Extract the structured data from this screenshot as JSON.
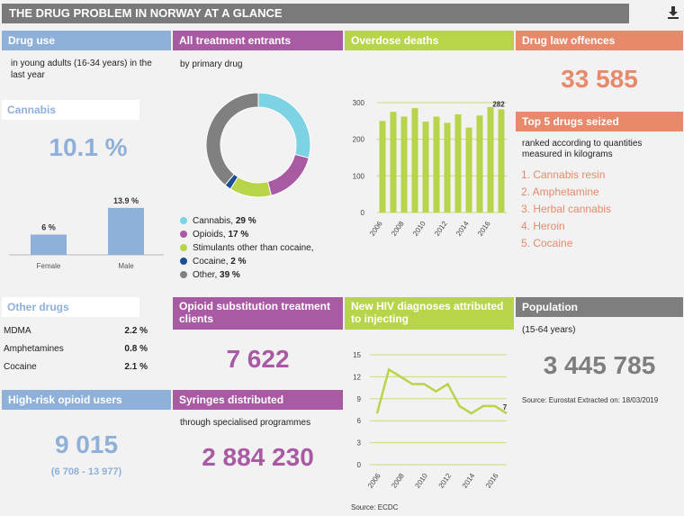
{
  "title": "THE DRUG PROBLEM IN NORWAY AT A GLANCE",
  "icons": {
    "download": "download-icon"
  },
  "drug_use": {
    "header": "Drug use",
    "subtitle": "in young adults (16-34 years) in the last year",
    "cannabis_label": "Cannabis",
    "cannabis_value": "10.1 %",
    "bar_chart": {
      "type": "bar",
      "categories": [
        "Female",
        "Male"
      ],
      "values": [
        6,
        13.9
      ],
      "labels": [
        "6 %",
        "13.9 %"
      ],
      "ylim": [
        0,
        16
      ],
      "color": "#8fb0d9"
    }
  },
  "treatment": {
    "header": "All treatment entrants",
    "subtitle": "by primary drug",
    "donut": {
      "type": "pie",
      "slices": [
        {
          "name": "Cannabis",
          "value": 29,
          "label": "29 %",
          "color": "#7dd3e3"
        },
        {
          "name": "Opioids",
          "value": 17,
          "label": "17 %",
          "color": "#a85aa3"
        },
        {
          "name": "Stimulants other than cocaine",
          "value": 13,
          "label": "",
          "color": "#b8d44a"
        },
        {
          "name": "Cocaine",
          "value": 2,
          "label": "2 %",
          "color": "#1d4e8f"
        },
        {
          "name": "Other",
          "value": 39,
          "label": "39 %",
          "color": "#808080"
        }
      ]
    },
    "legend": [
      {
        "name": "Cannabis, ",
        "value": "29 %",
        "color": "#7dd3e3"
      },
      {
        "name": "Opioids, ",
        "value": "17 %",
        "color": "#a85aa3"
      },
      {
        "name": "Stimulants other than cocaine,",
        "value": "",
        "color": "#b8d44a"
      },
      {
        "name": "Cocaine, ",
        "value": "2 %",
        "color": "#1d4e8f"
      },
      {
        "name": "Other, ",
        "value": "39 %",
        "color": "#808080"
      }
    ]
  },
  "overdose": {
    "header": "Overdose deaths",
    "chart": {
      "type": "bar",
      "x": [
        2006,
        2007,
        2008,
        2009,
        2010,
        2011,
        2012,
        2013,
        2014,
        2015,
        2016,
        2017
      ],
      "values": [
        250,
        275,
        262,
        285,
        248,
        262,
        245,
        268,
        232,
        265,
        288,
        282
      ],
      "ylim": [
        0,
        300
      ],
      "yticks": [
        0,
        100,
        200,
        300
      ],
      "xticks": [
        "2006",
        "2008",
        "2010",
        "2012",
        "2014",
        "2016"
      ],
      "last_label": "282",
      "color": "#b8d44a"
    }
  },
  "drug_law": {
    "header": "Drug law offences",
    "value": "33 585"
  },
  "top5": {
    "header": "Top 5 drugs seized",
    "subtitle": "ranked according to quantities measured in kilograms",
    "items": [
      "1. Cannabis resin",
      "2. Amphetamine",
      "3. Herbal cannabis",
      "4. Heroin",
      "5. Cocaine"
    ]
  },
  "other_drugs": {
    "header": "Other drugs",
    "rows": [
      {
        "name": "MDMA",
        "value": "2.2 %"
      },
      {
        "name": "Amphetamines",
        "value": "0.8 %"
      },
      {
        "name": "Cocaine",
        "value": "2.1 %"
      }
    ]
  },
  "opioid_sub": {
    "header": "Opioid substitution treatment clients",
    "value": "7 622"
  },
  "hiv": {
    "header": "New HIV diagnoses attributed to injecting",
    "chart": {
      "type": "line",
      "x": [
        2006,
        2007,
        2008,
        2009,
        2010,
        2011,
        2012,
        2013,
        2014,
        2015,
        2016,
        2017
      ],
      "values": [
        7,
        13,
        12,
        11,
        11,
        10,
        11,
        8,
        7,
        8,
        8,
        7
      ],
      "ylim": [
        0,
        15
      ],
      "yticks": [
        0,
        3,
        6,
        9,
        12,
        15
      ],
      "xticks": [
        "2006",
        "2008",
        "2010",
        "2012",
        "2014",
        "2016"
      ],
      "last_label": "7",
      "color": "#b8d44a"
    },
    "source": "Source: ECDC"
  },
  "population": {
    "header": "Population",
    "subtitle": "(15-64 years)",
    "value": "3 445 785",
    "source": "Source: Eurostat Extracted on: 18/03/2019"
  },
  "high_risk": {
    "header": "High-risk opioid users",
    "value": "9 015",
    "range": "(6 708 - 13 977)"
  },
  "syringes": {
    "header": "Syringes distributed",
    "subtitle": "through specialised programmes",
    "value": "2 884 230"
  }
}
